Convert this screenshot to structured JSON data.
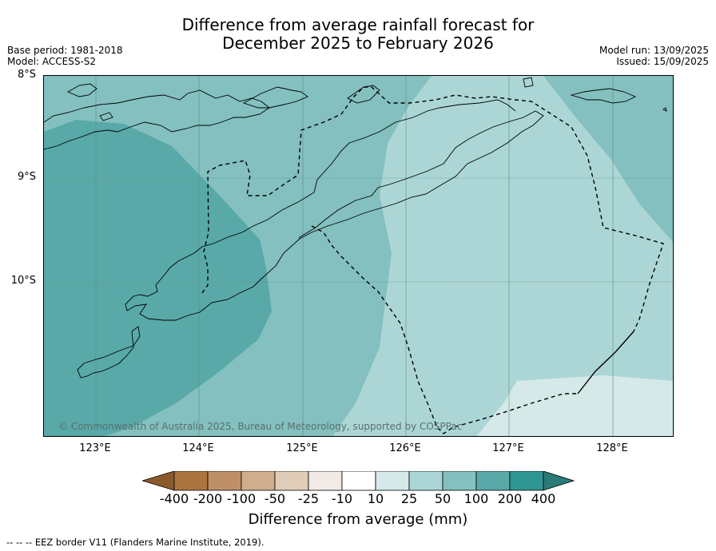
{
  "title_line1": "Difference from average rainfall forecast for",
  "title_line2": "December 2025 to February 2026",
  "meta": {
    "base_period": "Base period: 1981-2018",
    "model": "Model: ACCESS-S2",
    "model_run": "Model run: 13/09/2025",
    "issued": "Issued: 15/09/2025"
  },
  "latitudes": [
    "8°S",
    "9°S",
    "10°S"
  ],
  "longitudes": [
    "123°E",
    "124°E",
    "125°E",
    "126°E",
    "127°E",
    "128°E"
  ],
  "credit": "© Commonwealth of Australia 2025, Bureau of Meteorology, supported by COSPPac",
  "colorbar": {
    "title": "Difference from average (mm)",
    "labels": [
      "-400",
      "-200",
      "-100",
      "-50",
      "-25",
      "-10",
      "10",
      "25",
      "50",
      "100",
      "200",
      "400"
    ],
    "colors": [
      "#8b5a2b",
      "#ab753f",
      "#bf9068",
      "#cfae8e",
      "#e0cdb7",
      "#f0ebe6",
      "#ffffff",
      "#d4e9e8",
      "#acd6d5",
      "#83c0bf",
      "#59a9a9",
      "#2f9693",
      "#2a7a78"
    ]
  },
  "legend_note": "--  --  -- EEZ border V11 (Flanders Marine Institute, 2019)."
}
